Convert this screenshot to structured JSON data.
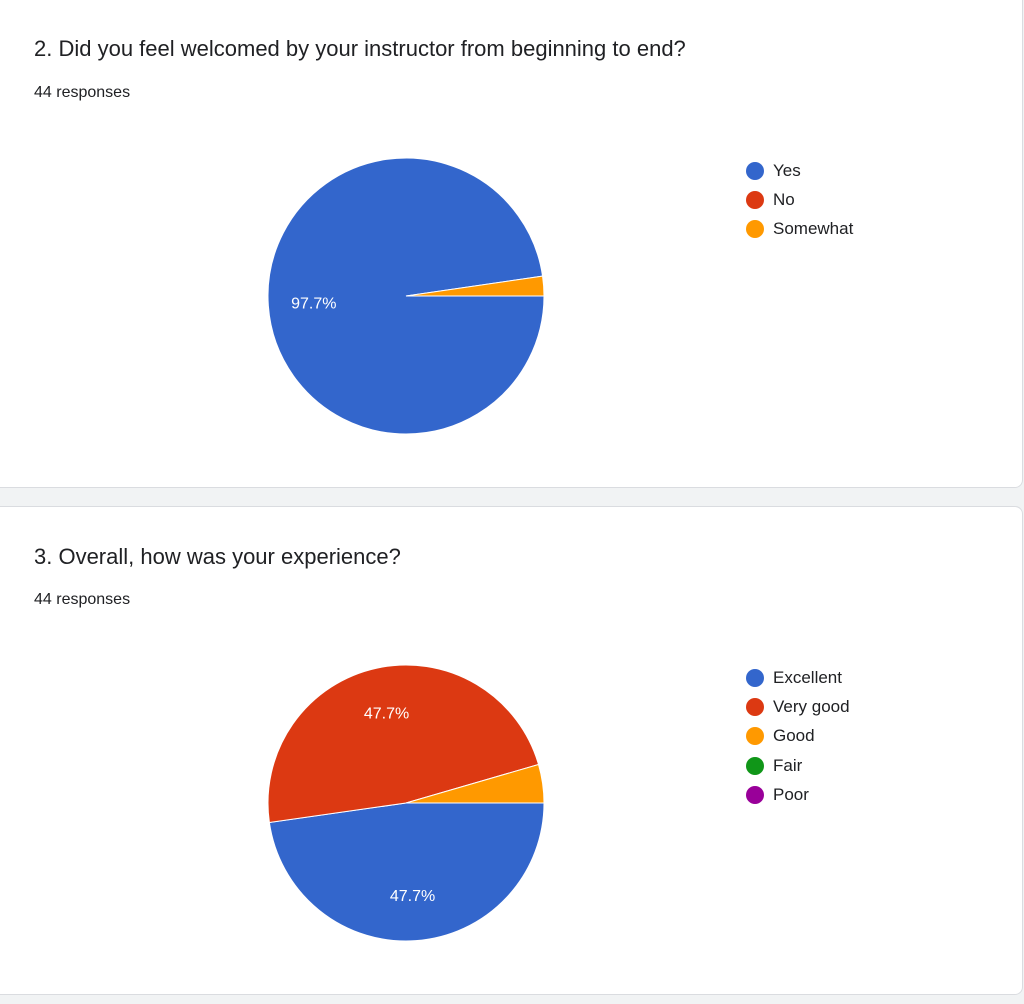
{
  "chart_data": [
    {
      "type": "pie",
      "title": "2. Did you feel welcomed by your instructor from beginning to end?",
      "subtitle": "44 responses",
      "categories": [
        "Yes",
        "No",
        "Somewhat"
      ],
      "values": [
        97.7,
        0,
        2.3
      ],
      "colors": [
        "#3366cc",
        "#dc3912",
        "#ff9900"
      ],
      "data_labels": [
        "97.7%",
        "",
        ""
      ],
      "legend_position": "right"
    },
    {
      "type": "pie",
      "title": "3. Overall, how was your experience?",
      "subtitle": "44 responses",
      "categories": [
        "Excellent",
        "Very good",
        "Good",
        "Fair",
        "Poor"
      ],
      "values": [
        47.7,
        47.7,
        4.5,
        0,
        0
      ],
      "colors": [
        "#3366cc",
        "#dc3912",
        "#ff9900",
        "#109618",
        "#990099"
      ],
      "data_labels": [
        "47.7%",
        "47.7%",
        "",
        "",
        ""
      ],
      "legend_position": "right"
    }
  ]
}
